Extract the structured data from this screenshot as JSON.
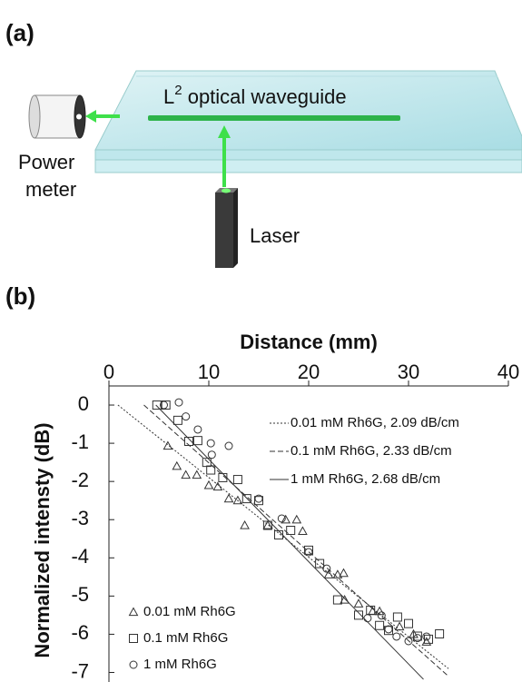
{
  "panel_a": {
    "label": "(a)",
    "waveguide_label": {
      "base": "L",
      "sup": "2",
      "rest": " optical waveguide"
    },
    "power_meter": [
      "Power",
      "meter"
    ],
    "laser": "Laser"
  },
  "panel_b_label": "(b)",
  "chart_data": {
    "type": "scatter",
    "x_label": "Distance (mm)",
    "y_label": "Normalized intensty (dB)",
    "xlim": [
      0,
      40
    ],
    "xticks": [
      0,
      10,
      20,
      30,
      40
    ],
    "ylim": [
      -7.25,
      0.5
    ],
    "yticks": [
      0,
      -1,
      -2,
      -3,
      -4,
      -5,
      -6,
      -7
    ],
    "series": [
      {
        "name": "0.01 mM Rh6G",
        "marker": "triangle",
        "color": "#333333",
        "x": [
          5.9,
          6.8,
          7.7,
          8.8,
          10,
          10.9,
          12,
          12.9,
          13.6,
          15.9,
          17.7,
          18.8,
          19.4,
          22,
          22.9,
          23.5,
          23.6,
          25,
          26.4,
          27.1,
          29.1,
          30.5,
          31.8
        ],
        "values": [
          -1.07,
          -1.6,
          -1.83,
          -1.83,
          -2.1,
          -2.14,
          -2.45,
          -2.5,
          -3.15,
          -3.15,
          -3.0,
          -3.0,
          -3.3,
          -4.44,
          -4.44,
          -4.4,
          -5.1,
          -5.2,
          -5.4,
          -5.4,
          -5.8,
          -6.0,
          -6.2
        ]
      },
      {
        "name": "0.1 mM Rh6G",
        "marker": "square",
        "color": "#333333",
        "x": [
          4.8,
          5.7,
          6.9,
          8.0,
          8.9,
          9.8,
          10.2,
          11.4,
          12.9,
          13.8,
          15,
          15.9,
          17,
          18.2,
          20,
          21.1,
          22.9,
          25,
          26.2,
          27.1,
          28,
          28.9,
          30,
          30.9,
          32,
          33.1
        ],
        "values": [
          0,
          0,
          -0.4,
          -0.95,
          -0.93,
          -1.5,
          -1.7,
          -1.9,
          -1.95,
          -2.45,
          -2.5,
          -3.15,
          -3.4,
          -3.28,
          -3.8,
          -4.15,
          -5.1,
          -5.5,
          -5.37,
          -5.77,
          -5.9,
          -5.55,
          -5.72,
          -6.05,
          -6.13,
          -5.99
        ]
      },
      {
        "name": "1 mM Rh6G",
        "marker": "circle",
        "color": "#333333",
        "x": [
          5.5,
          7,
          7.7,
          8.9,
          10.2,
          10.3,
          12,
          15,
          17.3,
          20,
          21.8,
          25.9,
          27.3,
          28,
          28.8,
          30,
          30.9,
          31.8
        ],
        "values": [
          0,
          0.07,
          -0.3,
          -0.64,
          -1.0,
          -1.3,
          -1.07,
          -2.45,
          -2.97,
          -3.85,
          -4.28,
          -5.58,
          -5.51,
          -5.87,
          -6.06,
          -6.18,
          -6.1,
          -6.06
        ]
      }
    ],
    "fits": [
      {
        "name": "0.01 mM Rh6G, 2.09 dB/cm",
        "linestyle": "dotted",
        "color": "#333333",
        "x": [
          0.9,
          34
        ],
        "values": [
          0,
          -6.9
        ]
      },
      {
        "name": "0.1 mM Rh6G, 2.33 dB/cm",
        "linestyle": "dashed",
        "color": "#333333",
        "x": [
          3.5,
          34
        ],
        "values": [
          0,
          -7.1
        ]
      },
      {
        "name": "1 mM Rh6G, 2.68 dB/cm",
        "linestyle": "solid",
        "color": "#333333",
        "x": [
          4.7,
          31.5
        ],
        "values": [
          0,
          -7.18
        ]
      }
    ]
  }
}
